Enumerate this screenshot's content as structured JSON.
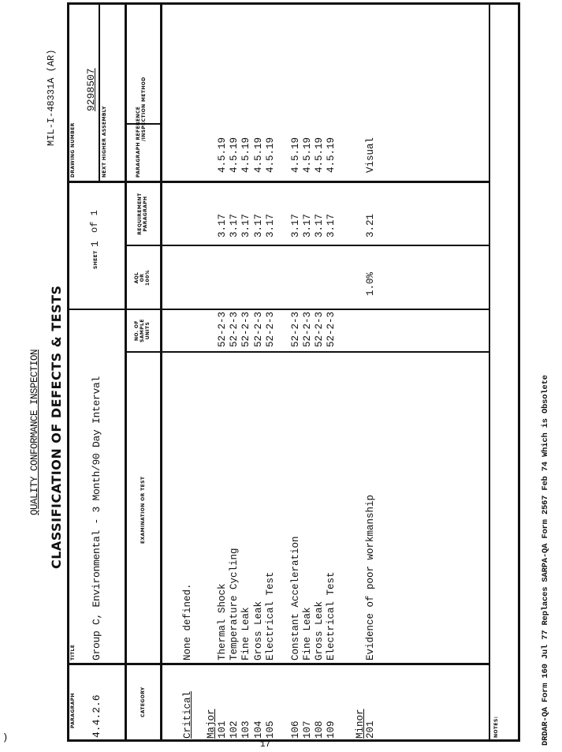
{
  "header": {
    "title_line1": "QUALITY CONFORMANCE INSPECTION",
    "title_line2": "CLASSIFICATION OF DEFECTS & TESTS",
    "spec_number": "MIL-I-48331A (AR)"
  },
  "title_block": {
    "paragraph_label": "PARAGRAPH",
    "paragraph_value": "4.4.2.6",
    "title_label": "TITLE",
    "title_value": "Group C, Environmental - 3 Month/90 Day Interval",
    "sheet_label": "SHEET",
    "sheet_value": "1",
    "sheet_of": "of 1",
    "drawing_number_label": "DRAWING NUMBER",
    "drawing_number_value": "9298507",
    "next_higher_assembly_label": "NEXT HIGHER ASSEMBLY"
  },
  "columns": {
    "category": "CATEGORY",
    "examination": "EXAMINATION OR TEST",
    "sample_units": [
      "NO. OF",
      "SAMPLE",
      "UNITS"
    ],
    "aql": [
      "AQL",
      "OR",
      "100%"
    ],
    "requirement": [
      "REQUIREMENT",
      "PARAGRAPH"
    ],
    "paragraph_reference": [
      "PARAGRAPH REFERENCE",
      "/INSPECTION METHOD"
    ]
  },
  "rows": [
    {
      "category": "Critical",
      "exam": "None defined.",
      "units": "",
      "aql": "",
      "req": "",
      "ref": ""
    },
    {
      "category": "Major",
      "exam": "",
      "units": "",
      "aql": "",
      "req": "",
      "ref": ""
    },
    {
      "category": "101",
      "exam": "Thermal Shock",
      "units": "52-2-3",
      "aql": "",
      "req": "3.17",
      "ref": "4.5.19"
    },
    {
      "category": "102",
      "exam": "Temperature Cycling",
      "units": "52-2-3",
      "aql": "",
      "req": "3.17",
      "ref": "4.5.19"
    },
    {
      "category": "103",
      "exam": "Fine Leak",
      "units": "52-2-3",
      "aql": "",
      "req": "3.17",
      "ref": "4.5.19"
    },
    {
      "category": "104",
      "exam": "Gross Leak",
      "units": "52-2-3",
      "aql": "",
      "req": "3.17",
      "ref": "4.5.19"
    },
    {
      "category": "105",
      "exam": "Electrical Test",
      "units": "52-2-3",
      "aql": "",
      "req": "3.17",
      "ref": "4.5.19"
    },
    {
      "category": "106",
      "exam": "Constant Acceleration",
      "units": "52-2-3",
      "aql": "",
      "req": "3.17",
      "ref": "4.5.19"
    },
    {
      "category": "107",
      "exam": "Fine Leak",
      "units": "52-2-3",
      "aql": "",
      "req": "3.17",
      "ref": "4.5.19"
    },
    {
      "category": "108",
      "exam": "Gross Leak",
      "units": "52-2-3",
      "aql": "",
      "req": "3.17",
      "ref": "4.5.19"
    },
    {
      "category": "109",
      "exam": "Electrical Test",
      "units": "52-2-3",
      "aql": "",
      "req": "3.17",
      "ref": "4.5.19"
    },
    {
      "category": "Minor",
      "exam": "",
      "units": "",
      "aql": "",
      "req": "",
      "ref": ""
    },
    {
      "category": "201",
      "exam": "Evidence of poor workmanship",
      "units": "",
      "aql": "1.0%",
      "req": "3.21",
      "ref": "Visual"
    }
  ],
  "notes_label": "NOTES:",
  "footer": "DRDAR-QA Form 160 Jul 77 Replaces SARPA-QA Form 2567 Feb 74 Which is Obsolete",
  "page_number": "17",
  "margin_mark": ")"
}
